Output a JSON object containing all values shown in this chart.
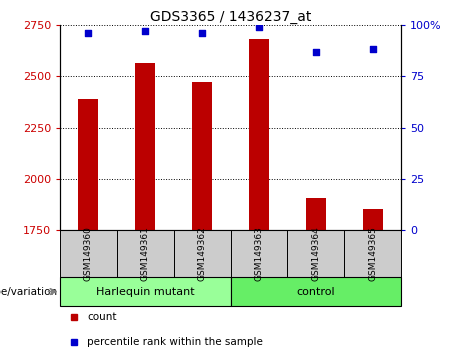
{
  "title": "GDS3365 / 1436237_at",
  "samples": [
    "GSM149360",
    "GSM149361",
    "GSM149362",
    "GSM149363",
    "GSM149364",
    "GSM149365"
  ],
  "counts": [
    2390,
    2565,
    2470,
    2680,
    1910,
    1855
  ],
  "percentiles": [
    96,
    97,
    96,
    99,
    87,
    88
  ],
  "ylim_left": [
    1750,
    2750
  ],
  "ylim_right": [
    0,
    100
  ],
  "yticks_left": [
    1750,
    2000,
    2250,
    2500,
    2750
  ],
  "yticks_right": [
    0,
    25,
    50,
    75,
    100
  ],
  "bar_color": "#BB0000",
  "dot_color": "#0000CC",
  "bar_bottom": 1750,
  "groups": [
    {
      "label": "Harlequin mutant",
      "indices": [
        0,
        1,
        2
      ],
      "color": "#99FF99"
    },
    {
      "label": "control",
      "indices": [
        3,
        4,
        5
      ],
      "color": "#66EE66"
    }
  ],
  "group_label": "genotype/variation",
  "legend_count_label": "count",
  "legend_pct_label": "percentile rank within the sample",
  "left_tick_color": "#CC0000",
  "right_tick_color": "#0000CC",
  "bar_width": 0.35,
  "plot_bg": "#FFFFFF",
  "label_area_bg": "#CCCCCC"
}
